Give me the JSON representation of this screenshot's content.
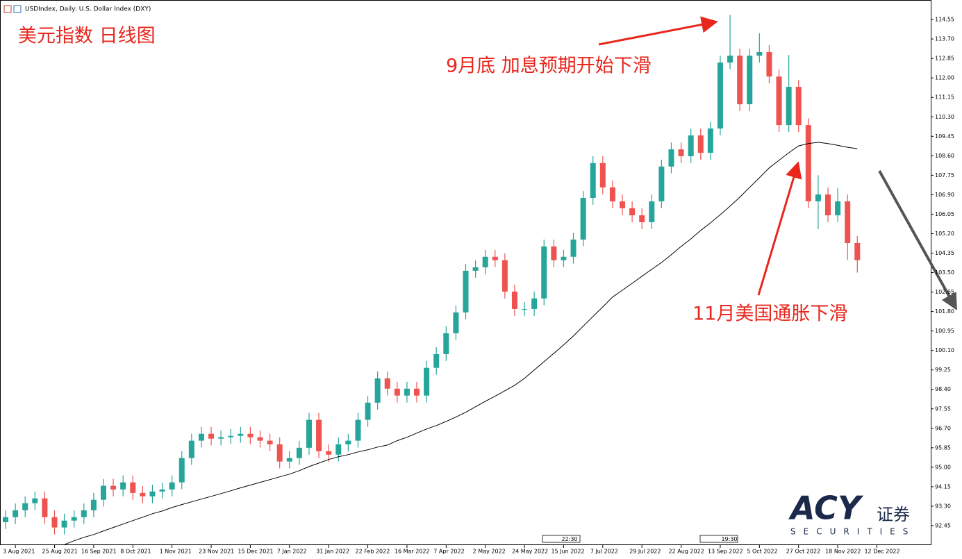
{
  "chart_data": {
    "type": "candlestick",
    "title": "USDIndex, Daily: U.S. Dollar Index (DXY)",
    "annotations": [
      "美元指数 日线图",
      "9月底 加息预期开始下滑",
      "11月美国通胀下滑"
    ],
    "event_markers": [
      "22:30",
      "19:30"
    ],
    "up_color": "#26a69a",
    "down_color": "#ef5350",
    "xlim": [
      -0.57,
      94.5
    ],
    "xticks": [
      {
        "value": 1,
        "label": "3 Aug 2021"
      },
      {
        "value": 5,
        "label": "25 Aug 2021"
      },
      {
        "value": 9,
        "label": "16 Sep 2021"
      },
      {
        "value": 13,
        "label": "8 Oct 2021"
      },
      {
        "value": 17,
        "label": "1 Nov 2021"
      },
      {
        "value": 21,
        "label": "23 Nov 2021"
      },
      {
        "value": 25,
        "label": "15 Dec 2021"
      },
      {
        "value": 29,
        "label": "7 Jan 2022"
      },
      {
        "value": 33,
        "label": "31 Jan 2022"
      },
      {
        "value": 37,
        "label": "22 Feb 2022"
      },
      {
        "value": 41,
        "label": "16 Mar 2022"
      },
      {
        "value": 45,
        "label": "7 Apr 2022"
      },
      {
        "value": 49,
        "label": "2 May 2022"
      },
      {
        "value": 53,
        "label": "24 May 2022"
      },
      {
        "value": 57,
        "label": "15 Jun 2022"
      },
      {
        "value": 61,
        "label": "7 Jul 2022"
      },
      {
        "value": 65,
        "label": "29 Jul 2022"
      },
      {
        "value": 69,
        "label": "22 Aug 2022"
      },
      {
        "value": 73,
        "label": "13 Sep 2022"
      },
      {
        "value": 77,
        "label": "5 Oct 2022"
      },
      {
        "value": 81,
        "label": "27 Oct 2022"
      },
      {
        "value": 85,
        "label": "18 Nov 2022"
      },
      {
        "value": 89,
        "label": "12 Dec 2022"
      }
    ],
    "ylim": [
      91.6,
      115.25
    ],
    "yticks": [
      92.45,
      {
        "value": 93.3,
        "label": "93.30"
      },
      94.15,
      {
        "value": 95,
        "label": "95.00"
      },
      95.85,
      {
        "value": 96.7,
        "label": "96.70"
      },
      97.55,
      {
        "value": 98.4,
        "label": "98.40"
      },
      99.25,
      {
        "value": 100.1,
        "label": "100.10"
      },
      100.95,
      {
        "value": 101.8,
        "label": "101.80"
      },
      102.65,
      {
        "value": 103.5,
        "label": "103.50"
      },
      104.35,
      {
        "value": 105.2,
        "label": "105.20"
      },
      106.05,
      {
        "value": 106.9,
        "label": "106.90"
      },
      107.75,
      {
        "value": 108.6,
        "label": "108.60"
      },
      109.45,
      {
        "value": 110.3,
        "label": "110.30"
      },
      111.15,
      {
        "value": 112,
        "label": "112.00"
      },
      112.85,
      {
        "value": 113.7,
        "label": "113.70"
      },
      114.55
    ],
    "open": [
      92.6,
      92.82,
      93.12,
      93.43,
      93.64,
      92.82,
      92.37,
      92.67,
      92.82,
      93.12,
      93.58,
      94.19,
      94.03,
      94.34,
      93.88,
      93.73,
      93.94,
      94.03,
      94.34,
      95.4,
      96.16,
      96.46,
      96.25,
      96.31,
      96.37,
      96.46,
      96.31,
      96.16,
      96.0,
      95.25,
      95.4,
      95.85,
      97.07,
      95.7,
      95.55,
      96.0,
      96.16,
      97.07,
      97.82,
      98.88,
      98.43,
      98.13,
      98.43,
      98.13,
      99.34,
      99.94,
      100.85,
      101.76,
      103.58,
      103.73,
      104.19,
      104.04,
      102.67,
      101.91,
      101.91,
      102.37,
      104.64,
      104.04,
      104.19,
      104.94,
      106.76,
      108.28,
      107.22,
      106.61,
      106.31,
      106.0,
      105.7,
      106.61,
      108.13,
      108.88,
      108.58,
      109.49,
      108.73,
      109.79,
      112.67,
      112.97,
      110.85,
      112.97,
      113.13,
      112.06,
      109.94,
      111.61,
      109.94,
      106.61,
      106.91,
      106.0,
      106.61,
      104.79
    ],
    "high": [
      93.12,
      93.42,
      93.73,
      93.94,
      93.94,
      93.12,
      92.97,
      93.12,
      93.42,
      93.88,
      94.49,
      94.49,
      94.64,
      94.64,
      94.18,
      94.24,
      94.33,
      94.64,
      95.7,
      96.46,
      96.76,
      96.76,
      96.61,
      96.67,
      96.76,
      96.76,
      96.61,
      96.46,
      96.3,
      95.7,
      96.15,
      97.37,
      97.37,
      96.0,
      96.3,
      96.46,
      97.37,
      98.12,
      99.18,
      99.18,
      98.73,
      98.73,
      98.73,
      99.64,
      100.24,
      101.15,
      102.06,
      103.88,
      104.03,
      104.49,
      104.49,
      104.34,
      102.97,
      102.21,
      102.67,
      104.94,
      104.94,
      104.49,
      105.24,
      107.06,
      108.58,
      108.58,
      107.52,
      106.91,
      106.61,
      106.3,
      106.91,
      108.43,
      109.18,
      109.18,
      109.79,
      109.79,
      110.09,
      112.97,
      114.75,
      113.27,
      113.27,
      113.95,
      113.43,
      112.36,
      113.0,
      111.91,
      110.24,
      107.75,
      107.21,
      107.2,
      106.91,
      105.09
    ],
    "low": [
      92.3,
      92.52,
      92.82,
      93.13,
      92.52,
      92.07,
      92.07,
      92.37,
      92.52,
      92.82,
      93.28,
      93.73,
      93.73,
      93.58,
      93.43,
      93.43,
      93.64,
      93.73,
      94.04,
      95.1,
      95.86,
      95.95,
      95.95,
      96.01,
      96.07,
      96.01,
      95.86,
      95.7,
      94.95,
      94.95,
      95.1,
      95.55,
      95.4,
      95.25,
      95.25,
      95.7,
      95.86,
      96.77,
      97.52,
      98.13,
      97.83,
      97.83,
      97.83,
      97.83,
      99.04,
      99.64,
      100.55,
      101.46,
      103.28,
      103.43,
      103.74,
      102.37,
      101.61,
      101.61,
      101.61,
      102.07,
      103.74,
      103.74,
      103.89,
      104.64,
      106.46,
      106.92,
      106.31,
      106.01,
      105.7,
      105.4,
      105.4,
      106.31,
      107.83,
      108.28,
      108.28,
      108.43,
      108.43,
      109.49,
      112.37,
      110.55,
      110.55,
      112.67,
      111.76,
      109.64,
      109.64,
      109.64,
      106.31,
      105.4,
      105.7,
      105.7,
      104.05,
      103.5
    ],
    "close": [
      92.82,
      93.12,
      93.43,
      93.64,
      92.82,
      92.37,
      92.67,
      92.82,
      93.12,
      93.58,
      94.19,
      94.03,
      94.34,
      93.88,
      93.73,
      93.94,
      94.03,
      94.34,
      95.4,
      96.16,
      96.46,
      96.25,
      96.31,
      96.37,
      96.46,
      96.31,
      96.16,
      96.0,
      95.25,
      95.4,
      95.85,
      97.07,
      95.7,
      95.55,
      96.0,
      96.16,
      97.07,
      97.82,
      98.88,
      98.43,
      98.13,
      98.43,
      98.13,
      99.34,
      99.94,
      100.85,
      101.76,
      103.58,
      103.73,
      104.19,
      104.04,
      102.67,
      101.91,
      101.91,
      102.37,
      104.64,
      104.04,
      104.19,
      104.94,
      106.76,
      108.28,
      107.22,
      106.61,
      106.31,
      106.0,
      105.7,
      106.61,
      108.13,
      108.88,
      108.58,
      109.49,
      108.73,
      109.79,
      112.67,
      112.97,
      110.85,
      112.97,
      113.13,
      112.06,
      109.94,
      111.61,
      109.94,
      106.61,
      106.91,
      106.0,
      106.61,
      104.79,
      104.04
    ],
    "ma": {
      "color": "#000000",
      "values": [
        null,
        null,
        null,
        null,
        null,
        null,
        91.62,
        91.79,
        91.94,
        92.06,
        92.22,
        92.37,
        92.52,
        92.67,
        92.82,
        92.97,
        93.09,
        93.24,
        93.37,
        93.49,
        93.61,
        93.73,
        93.85,
        93.97,
        94.1,
        94.22,
        94.34,
        94.46,
        94.58,
        94.7,
        94.85,
        95.03,
        95.18,
        95.34,
        95.46,
        95.55,
        95.67,
        95.76,
        95.88,
        95.97,
        96.16,
        96.31,
        96.49,
        96.67,
        96.82,
        97.0,
        97.19,
        97.4,
        97.64,
        97.88,
        98.1,
        98.34,
        98.58,
        98.88,
        99.25,
        99.61,
        99.97,
        100.34,
        100.73,
        101.16,
        101.58,
        102.0,
        102.43,
        102.73,
        103.03,
        103.34,
        103.64,
        103.94,
        104.28,
        104.64,
        104.97,
        105.34,
        105.67,
        106.03,
        106.4,
        106.79,
        107.22,
        107.64,
        108.07,
        108.4,
        108.73,
        109.03,
        109.13,
        109.19,
        109.13,
        109.06,
        108.97,
        108.91
      ]
    }
  },
  "logo": {
    "brand": "ACY",
    "sub": "证券",
    "tagline": "SECURITIES"
  }
}
